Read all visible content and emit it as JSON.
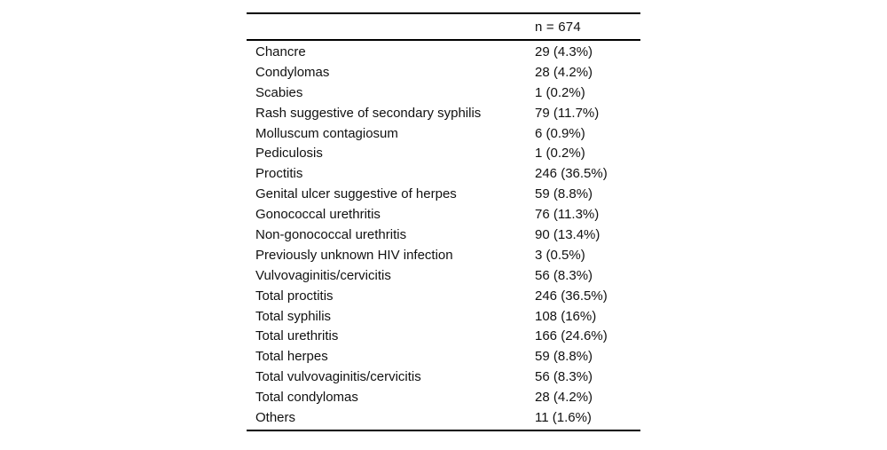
{
  "table": {
    "header": {
      "value_label": "n = 674"
    },
    "rows": [
      {
        "label": "Chancre",
        "value": "29 (4.3%)"
      },
      {
        "label": "Condylomas",
        "value": "28 (4.2%)"
      },
      {
        "label": "Scabies",
        "value": "1 (0.2%)"
      },
      {
        "label": "Rash suggestive of secondary syphilis",
        "value": "79 (11.7%)"
      },
      {
        "label": "Molluscum contagiosum",
        "value": "6 (0.9%)"
      },
      {
        "label": "Pediculosis",
        "value": "1 (0.2%)"
      },
      {
        "label": "Proctitis",
        "value": "246 (36.5%)"
      },
      {
        "label": "Genital ulcer suggestive of herpes",
        "value": "59 (8.8%)"
      },
      {
        "label": "Gonococcal urethritis",
        "value": "76 (11.3%)"
      },
      {
        "label": "Non-gonococcal urethritis",
        "value": "90 (13.4%)"
      },
      {
        "label": "Previously unknown HIV infection",
        "value": "3 (0.5%)"
      },
      {
        "label": "Vulvovaginitis/cervicitis",
        "value": "56 (8.3%)"
      },
      {
        "label": "Total proctitis",
        "value": "246 (36.5%)"
      },
      {
        "label": "Total syphilis",
        "value": "108 (16%)"
      },
      {
        "label": "Total urethritis",
        "value": "166 (24.6%)"
      },
      {
        "label": "Total herpes",
        "value": "59 (8.8%)"
      },
      {
        "label": "Total vulvovaginitis/cervicitis",
        "value": "56 (8.3%)"
      },
      {
        "label": "Total condylomas",
        "value": "28 (4.2%)"
      },
      {
        "label": "Others",
        "value": "11 (1.6%)"
      }
    ]
  },
  "colors": {
    "text": "#111111",
    "rule": "#000000",
    "background": "#ffffff"
  }
}
